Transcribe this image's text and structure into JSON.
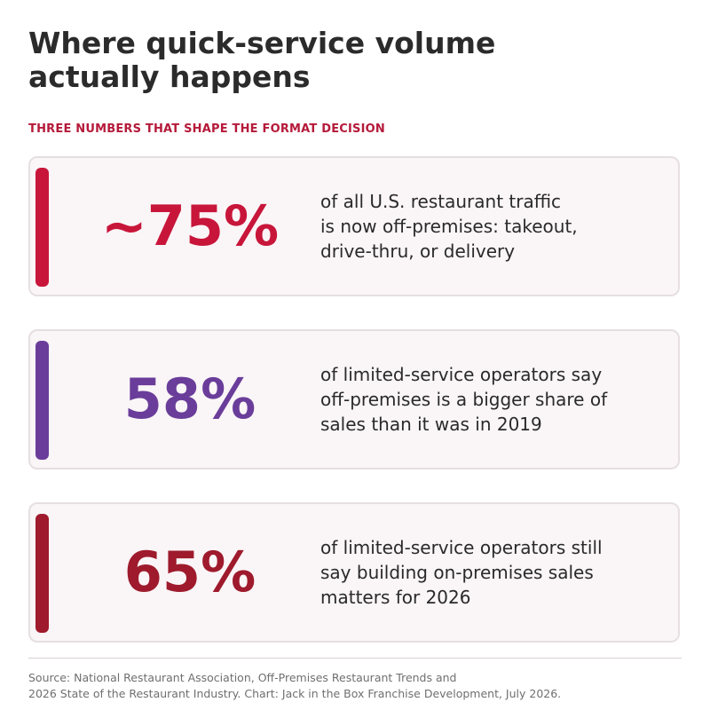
{
  "title_lines": [
    "Where quick-service volume",
    "actually happens"
  ],
  "subtitle": "THREE NUMBERS THAT SHAPE THE FORMAT DECISION",
  "colors": {
    "subtitle": "#b51a3a",
    "card_background": "#faf5f7",
    "card_border": "#e6dfe1"
  },
  "chart_data": {
    "type": "table",
    "title": "Where quick-service volume actually happens",
    "subtitle": "THREE NUMBERS THAT SHAPE THE FORMAT DECISION",
    "stats": [
      {
        "label": "~75%",
        "value": 75,
        "unit": "%",
        "color": "#c8163a",
        "description_lines": [
          "of all U.S. restaurant traffic",
          "is now off-premises: takeout,",
          "drive-thru, or delivery"
        ]
      },
      {
        "label": "58%",
        "value": 58,
        "unit": "%",
        "color": "#6a3d9a",
        "description_lines": [
          "of limited-service operators say",
          "off-premises is a bigger share of",
          "sales than it was in 2019"
        ]
      },
      {
        "label": "65%",
        "value": 65,
        "unit": "%",
        "color": "#9e1a2c",
        "description_lines": [
          "of limited-service operators still",
          "say building on-premises sales",
          "matters for 2026"
        ]
      }
    ]
  },
  "source_lines": [
    "Source: National Restaurant Association, Off-Premises Restaurant Trends and",
    "2026 State of the Restaurant Industry.  Chart: Jack in the Box Franchise Development, July 2026."
  ]
}
